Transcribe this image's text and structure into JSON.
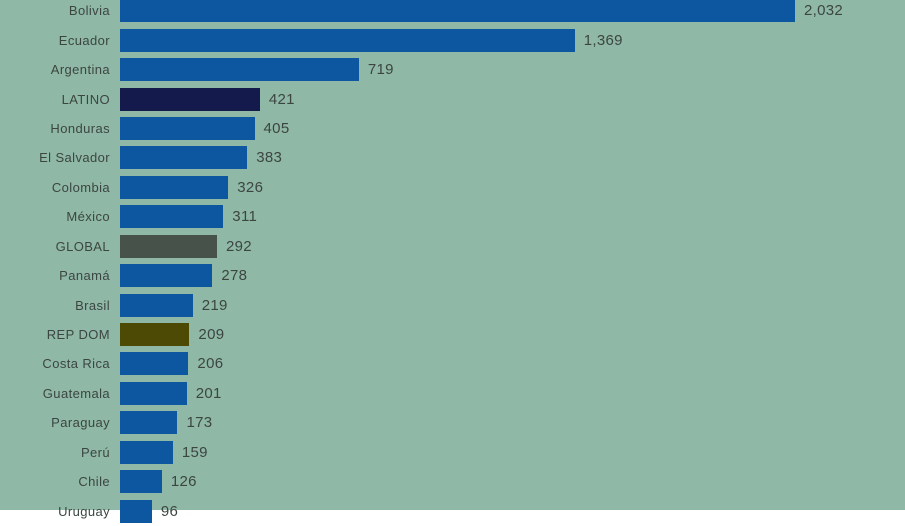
{
  "app": {
    "description": "Horizontal bar chart ranking Latin American countries by value, with LATINO, GLOBAL and REP DOM aggregate rows highlighted"
  },
  "colors": {
    "background": "#8fb8a6",
    "bar_blue": "#0d56a0",
    "bar_latino_navy": "#151a4d",
    "bar_global_gray": "#47524b",
    "bar_repdom_olive": "#4c4a04",
    "text": "#3c4641"
  },
  "chart_data": {
    "type": "bar",
    "orientation": "horizontal",
    "title": "",
    "xlabel": "",
    "ylabel": "",
    "xlim": [
      0,
      2032
    ],
    "grid": false,
    "legend": "none",
    "categories": [
      "Bolivia",
      "Ecuador",
      "Argentina",
      "LATINO",
      "Honduras",
      "El Salvador",
      "Colombia",
      "México",
      "GLOBAL",
      "Panamá",
      "Brasil",
      "REP DOM",
      "Costa Rica",
      "Guatemala",
      "Paraguay",
      "Perú",
      "Chile",
      "Uruguay"
    ],
    "values": [
      2032,
      1369,
      719,
      421,
      405,
      383,
      326,
      311,
      292,
      278,
      219,
      209,
      206,
      201,
      173,
      159,
      126,
      96
    ],
    "value_labels": [
      "2,032",
      "1,369",
      "719",
      "421",
      "405",
      "383",
      "326",
      "311",
      "292",
      "278",
      "219",
      "209",
      "206",
      "201",
      "173",
      "159",
      "126",
      "96"
    ],
    "bar_colors": [
      "#0d56a0",
      "#0d56a0",
      "#0d56a0",
      "#151a4d",
      "#0d56a0",
      "#0d56a0",
      "#0d56a0",
      "#0d56a0",
      "#47524b",
      "#0d56a0",
      "#0d56a0",
      "#4c4a04",
      "#0d56a0",
      "#0d56a0",
      "#0d56a0",
      "#0d56a0",
      "#0d56a0",
      "#0d56a0"
    ]
  }
}
